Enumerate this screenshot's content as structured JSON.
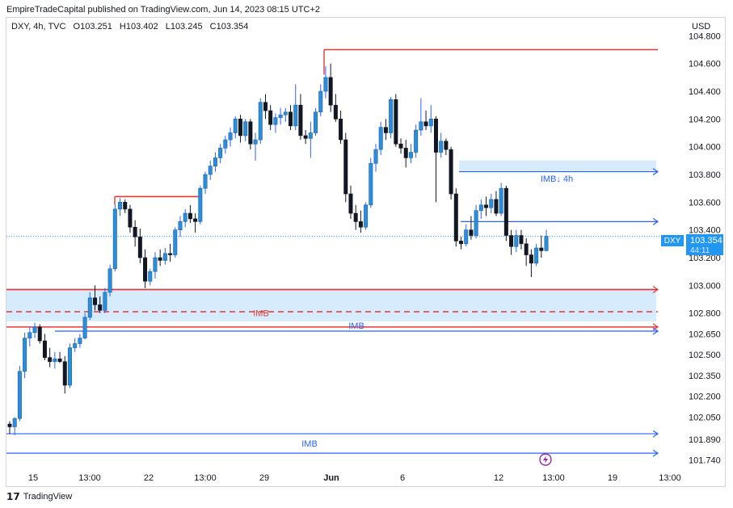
{
  "header": {
    "publisher": "EmpireTradeCapital published on TradingView.com, Jun 14, 2023 08:15 UTC+2"
  },
  "footer": {
    "logo_text": "TradingView"
  },
  "colors": {
    "bull": "#2962ff",
    "bullFill": "#2b8ed8",
    "bear": "#131722",
    "red": "#e53935",
    "blue": "#2962ff",
    "zone": "#cfe8fb",
    "tag": "#2196f3"
  },
  "chart_data": {
    "type": "candlestick",
    "symbol_line": {
      "symbol": "DXY, 4h, TVC",
      "open": "O103.251",
      "high": "H103.402",
      "low": "L103.245",
      "close": "C103.354"
    },
    "y_axis": {
      "title": "USD",
      "ticks": [
        "104.800",
        "104.600",
        "104.400",
        "104.200",
        "104.000",
        "103.800",
        "103.600",
        "103.400",
        "103.200",
        "103.000",
        "102.800",
        "102.650",
        "102.500",
        "102.350",
        "102.200",
        "102.050",
        "101.890",
        "101.740"
      ],
      "range": [
        101.68,
        104.93
      ]
    },
    "x_axis": {
      "ticks": [
        "15",
        "13:00",
        "22",
        "13:00",
        "29",
        "Jun",
        "6",
        "12",
        "13:00",
        "19",
        "13:00"
      ]
    },
    "last_price": {
      "symbol": "DXY",
      "price": "103.354",
      "countdown": "44:11"
    },
    "zones": [
      {
        "name": "IMB↓ 4h",
        "top": 103.9,
        "bottom": 103.82
      },
      {
        "name": "IMB",
        "top": 102.98,
        "bottom": 102.74
      }
    ],
    "levels": [
      {
        "price": 104.7,
        "color": "red"
      },
      {
        "price": 103.64,
        "color": "red"
      },
      {
        "price": 103.46,
        "color": "blue"
      },
      {
        "price": 102.97,
        "color": "red"
      },
      {
        "price": 102.81,
        "color": "red",
        "dashed": true
      },
      {
        "price": 102.7,
        "color": "red"
      },
      {
        "price": 102.67,
        "color": "blue"
      },
      {
        "price": 101.93,
        "color": "blue"
      },
      {
        "price": 101.79,
        "color": "blue"
      }
    ],
    "labels": [
      {
        "text": "IMB",
        "color": "red"
      },
      {
        "text": "IMB",
        "color": "blue"
      },
      {
        "text": "IMB",
        "color": "blue"
      }
    ],
    "candles": [
      [
        102.0,
        102.02,
        101.93,
        101.98
      ],
      [
        101.98,
        102.05,
        101.92,
        102.04
      ],
      [
        102.04,
        102.42,
        102.02,
        102.38
      ],
      [
        102.38,
        102.66,
        102.33,
        102.62
      ],
      [
        102.62,
        102.7,
        102.56,
        102.66
      ],
      [
        102.66,
        102.73,
        102.62,
        102.7
      ],
      [
        102.7,
        102.72,
        102.58,
        102.6
      ],
      [
        102.6,
        102.65,
        102.46,
        102.48
      ],
      [
        102.48,
        102.55,
        102.41,
        102.45
      ],
      [
        102.45,
        102.52,
        102.4,
        102.47
      ],
      [
        102.47,
        102.52,
        102.44,
        102.45
      ],
      [
        102.45,
        102.49,
        102.22,
        102.28
      ],
      [
        102.28,
        102.58,
        102.26,
        102.55
      ],
      [
        102.55,
        102.62,
        102.52,
        102.58
      ],
      [
        102.58,
        102.65,
        102.55,
        102.62
      ],
      [
        102.62,
        102.8,
        102.61,
        102.77
      ],
      [
        102.77,
        102.95,
        102.75,
        102.91
      ],
      [
        102.91,
        103.0,
        102.82,
        102.86
      ],
      [
        102.86,
        102.92,
        102.8,
        102.82
      ],
      [
        102.82,
        102.98,
        102.8,
        102.95
      ],
      [
        102.95,
        103.15,
        102.92,
        103.12
      ],
      [
        103.12,
        103.58,
        103.1,
        103.55
      ],
      [
        103.55,
        103.63,
        103.5,
        103.6
      ],
      [
        103.6,
        103.62,
        103.52,
        103.55
      ],
      [
        103.55,
        103.58,
        103.38,
        103.42
      ],
      [
        103.42,
        103.47,
        103.28,
        103.35
      ],
      [
        103.35,
        103.41,
        103.16,
        103.2
      ],
      [
        103.2,
        103.26,
        102.98,
        103.03
      ],
      [
        103.03,
        103.12,
        103.0,
        103.1
      ],
      [
        103.1,
        103.24,
        103.05,
        103.2
      ],
      [
        103.2,
        103.26,
        103.14,
        103.18
      ],
      [
        103.18,
        103.27,
        103.15,
        103.23
      ],
      [
        103.23,
        103.3,
        103.17,
        103.22
      ],
      [
        103.22,
        103.42,
        103.2,
        103.4
      ],
      [
        103.4,
        103.5,
        103.35,
        103.46
      ],
      [
        103.46,
        103.55,
        103.42,
        103.52
      ],
      [
        103.52,
        103.58,
        103.45,
        103.48
      ],
      [
        103.48,
        103.52,
        103.38,
        103.46
      ],
      [
        103.46,
        103.72,
        103.44,
        103.7
      ],
      [
        103.7,
        103.82,
        103.66,
        103.8
      ],
      [
        103.8,
        103.9,
        103.76,
        103.86
      ],
      [
        103.86,
        103.96,
        103.82,
        103.92
      ],
      [
        103.92,
        104.02,
        103.88,
        103.99
      ],
      [
        103.99,
        104.08,
        103.95,
        104.05
      ],
      [
        104.05,
        104.14,
        104.0,
        104.1
      ],
      [
        104.1,
        104.22,
        104.06,
        104.2
      ],
      [
        104.2,
        104.23,
        104.03,
        104.08
      ],
      [
        104.08,
        104.2,
        104.04,
        104.18
      ],
      [
        104.18,
        104.2,
        103.98,
        104.02
      ],
      [
        104.02,
        104.1,
        103.9,
        104.05
      ],
      [
        104.05,
        104.35,
        104.02,
        104.32
      ],
      [
        104.32,
        104.38,
        104.2,
        104.26
      ],
      [
        104.26,
        104.3,
        104.12,
        104.16
      ],
      [
        104.16,
        104.24,
        104.1,
        104.21
      ],
      [
        104.21,
        104.28,
        104.16,
        104.23
      ],
      [
        104.23,
        104.28,
        104.18,
        104.25
      ],
      [
        104.25,
        104.3,
        104.12,
        104.15
      ],
      [
        104.15,
        104.45,
        104.12,
        104.3
      ],
      [
        104.3,
        104.38,
        104.05,
        104.08
      ],
      [
        104.08,
        104.12,
        104.02,
        104.06
      ],
      [
        104.06,
        104.18,
        103.92,
        104.1
      ],
      [
        104.1,
        104.28,
        104.08,
        104.25
      ],
      [
        104.25,
        104.45,
        104.22,
        104.4
      ],
      [
        104.4,
        104.58,
        104.35,
        104.5
      ],
      [
        104.5,
        104.6,
        104.25,
        104.3
      ],
      [
        104.3,
        104.38,
        104.18,
        104.2
      ],
      [
        104.2,
        104.26,
        104.02,
        104.05
      ],
      [
        104.05,
        104.1,
        103.6,
        103.66
      ],
      [
        103.66,
        103.72,
        103.48,
        103.52
      ],
      [
        103.52,
        103.58,
        103.4,
        103.46
      ],
      [
        103.46,
        103.54,
        103.38,
        103.42
      ],
      [
        103.42,
        103.6,
        103.4,
        103.58
      ],
      [
        103.58,
        103.92,
        103.56,
        103.88
      ],
      [
        103.88,
        104.02,
        103.82,
        103.98
      ],
      [
        103.98,
        104.18,
        103.94,
        104.14
      ],
      [
        104.14,
        104.2,
        104.05,
        104.1
      ],
      [
        104.1,
        104.36,
        104.06,
        104.34
      ],
      [
        104.34,
        104.38,
        104.0,
        104.02
      ],
      [
        104.02,
        104.06,
        103.95,
        103.99
      ],
      [
        103.99,
        104.05,
        103.85,
        103.92
      ],
      [
        103.92,
        104.02,
        103.88,
        103.96
      ],
      [
        103.96,
        104.16,
        103.92,
        104.12
      ],
      [
        104.12,
        104.35,
        104.08,
        104.18
      ],
      [
        104.18,
        104.26,
        104.12,
        104.15
      ],
      [
        104.15,
        104.3,
        104.1,
        104.2
      ],
      [
        104.2,
        104.22,
        103.6,
        103.96
      ],
      [
        103.96,
        104.1,
        103.92,
        104.04
      ],
      [
        104.04,
        104.06,
        103.94,
        103.98
      ],
      [
        103.98,
        104.0,
        103.62,
        103.66
      ],
      [
        103.66,
        103.7,
        103.28,
        103.32
      ],
      [
        103.32,
        103.35,
        103.26,
        103.3
      ],
      [
        103.3,
        103.44,
        103.28,
        103.4
      ],
      [
        103.4,
        103.5,
        103.33,
        103.36
      ],
      [
        103.36,
        103.58,
        103.34,
        103.54
      ],
      [
        103.54,
        103.62,
        103.48,
        103.58
      ],
      [
        103.58,
        103.64,
        103.5,
        103.56
      ],
      [
        103.56,
        103.66,
        103.52,
        103.62
      ],
      [
        103.62,
        103.68,
        103.5,
        103.52
      ],
      [
        103.52,
        103.74,
        103.5,
        103.7
      ],
      [
        103.7,
        103.72,
        103.32,
        103.36
      ],
      [
        103.36,
        103.4,
        103.22,
        103.28
      ],
      [
        103.28,
        103.4,
        103.24,
        103.36
      ],
      [
        103.36,
        103.4,
        103.26,
        103.3
      ],
      [
        103.3,
        103.34,
        103.14,
        103.22
      ],
      [
        103.22,
        103.26,
        103.06,
        103.16
      ],
      [
        103.16,
        103.3,
        103.14,
        103.27
      ],
      [
        103.27,
        103.36,
        103.2,
        103.25
      ],
      [
        103.251,
        103.402,
        103.245,
        103.354
      ]
    ]
  }
}
